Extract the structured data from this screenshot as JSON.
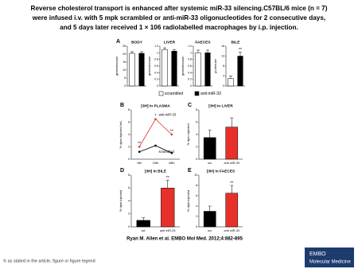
{
  "header": {
    "title_lines": [
      "Reverse cholesterol transport is enhanced after systemic miR-33 silencing.C57BL/6 mice (n = 7)",
      "were infused i.v. with 5 mpk scrambled or anti-miR-33 oligonucleotides for 2 consecutive days,",
      "and 5 days later received 1 × 106 radiolabelled macrophages by i.p. injection."
    ]
  },
  "legend_a": [
    {
      "name": "scrambled",
      "color": "#ffffff"
    },
    {
      "name": "anti-miR-33",
      "color": "#000000"
    }
  ],
  "chart_data": [
    {
      "type": "bar",
      "panel": "A",
      "title": "BODY",
      "ylabel": "grams/mouse",
      "categories": [
        null,
        null
      ],
      "values": [
        20.5,
        20.5
      ],
      "errors": [
        1,
        1
      ],
      "colors": [
        "#ffffff",
        "#000000"
      ],
      "significance": [
        null,
        null
      ],
      "ylim": [
        0,
        25
      ],
      "yticks": [
        0,
        5,
        10,
        15,
        20,
        25
      ]
    },
    {
      "type": "bar",
      "title": "LIVER",
      "ylabel": "grams/mouse",
      "categories": [
        null,
        null
      ],
      "values": [
        1.1,
        1.05
      ],
      "errors": [
        0.05,
        0.05
      ],
      "colors": [
        "#ffffff",
        "#000000"
      ],
      "significance": [
        null,
        null
      ],
      "ylim": [
        0,
        1.2
      ],
      "yticks": [
        0,
        0.2,
        0.4,
        0.6,
        0.8,
        1,
        1.2
      ]
    },
    {
      "type": "bar",
      "title": "FAECES",
      "ylabel": "grams/mouse",
      "categories": [
        null,
        null
      ],
      "values": [
        1,
        1
      ],
      "errors": [
        0.08,
        0.08
      ],
      "colors": [
        "#ffffff",
        "#000000"
      ],
      "significance": [
        null,
        null
      ],
      "ylim": [
        0,
        1.2
      ],
      "yticks": [
        0,
        0.2,
        0.4,
        0.6,
        0.8,
        1,
        1.2
      ]
    },
    {
      "type": "bar",
      "title": "BILE",
      "ylabel": "μL/mouse",
      "categories": [
        null,
        null
      ],
      "values": [
        3,
        12
      ],
      "errors": [
        1,
        1.5
      ],
      "colors": [
        "#ffffff",
        "#000000"
      ],
      "significance": [
        null,
        "**"
      ],
      "ylim": [
        0,
        16
      ],
      "yticks": [
        0,
        4,
        8,
        12,
        16
      ]
    },
    {
      "type": "line",
      "panel": "B",
      "title": "[3H] in PLASMA",
      "ylabel": "% dpm injected /mL",
      "categories": [
        "6th",
        "24th",
        "48th"
      ],
      "series": [
        {
          "name": "anti-miR-33",
          "color": "#e8302a",
          "values": [
            2,
            6.5,
            4
          ]
        },
        {
          "name": "scrambled",
          "color": "#000000",
          "values": [
            1.2,
            2.2,
            1
          ]
        }
      ],
      "significance": [
        "**",
        "*",
        "**"
      ],
      "ylim": [
        0,
        8
      ],
      "yticks": [
        0,
        2,
        4,
        6,
        8
      ]
    },
    {
      "type": "bar",
      "panel": "C",
      "title": "[3H] in LIVER",
      "ylabel": "% dpm injected",
      "categories": [
        "scr",
        "anti miR-33"
      ],
      "values": [
        3.5,
        5.2
      ],
      "errors": [
        1.2,
        1.5
      ],
      "colors": [
        "#000000",
        "#e8302a"
      ],
      "significance": [
        null,
        null
      ],
      "ylim": [
        0,
        8
      ],
      "yticks": [
        0,
        2,
        4,
        6,
        8
      ]
    },
    {
      "type": "bar",
      "panel": "D",
      "title": "[3H] in BILE",
      "ylabel": "% dpm injected",
      "categories": [
        "scr",
        "anti miR-33"
      ],
      "values": [
        1,
        6
      ],
      "errors": [
        0.4,
        1.2
      ],
      "colors": [
        "#000000",
        "#e8302a"
      ],
      "significance": [
        null,
        "**"
      ],
      "ylim": [
        0,
        8
      ],
      "yticks": [
        0,
        2,
        4,
        6,
        8
      ]
    },
    {
      "type": "bar",
      "panel": "E",
      "title": "[3H] in FAECES",
      "ylabel": "% dpm injected",
      "categories": [
        "scr",
        "anti miR-33"
      ],
      "values": [
        3,
        6.5
      ],
      "errors": [
        1,
        1.5
      ],
      "colors": [
        "#000000",
        "#e8302a"
      ],
      "significance": [
        null,
        "**"
      ],
      "ylim": [
        0,
        10
      ],
      "yticks": [
        0,
        2,
        4,
        6,
        8,
        10
      ]
    }
  ],
  "citation": "Ryan M. Allen et al. EMBO Mol Med. 2012;4:882-895",
  "footer": "© as stated in the article, figure or figure legend",
  "logo": {
    "line1": "EMBO",
    "line2": "Molecular Medicine"
  }
}
